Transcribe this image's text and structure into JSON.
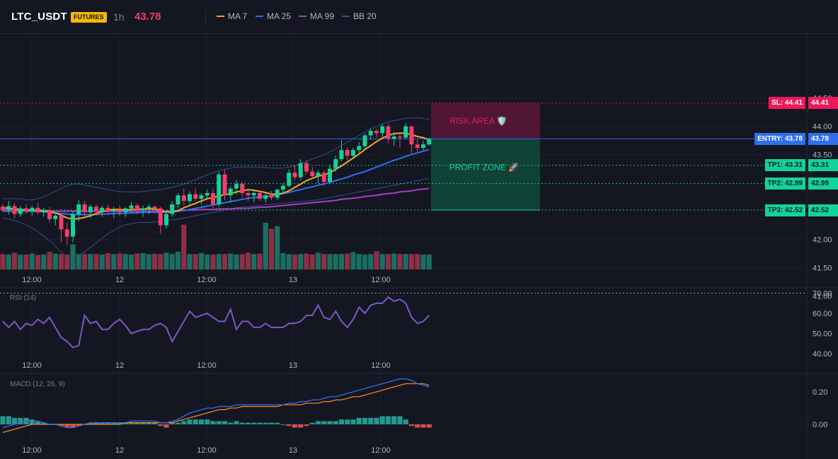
{
  "header": {
    "symbol": "LTC_USDT",
    "badge": "FUTURES",
    "timeframe": "1h",
    "price": "43.78",
    "legend": [
      {
        "label": "MA 7",
        "color": "#f5a623"
      },
      {
        "label": "MA 25",
        "color": "#2f6ff0"
      },
      {
        "label": "MA 99",
        "color": "#a53fc4"
      },
      {
        "label": "BB 20",
        "color": "#3a4a8c"
      }
    ]
  },
  "colors": {
    "up": "#12d39b",
    "down": "#f23e6b",
    "vol_up": "#1b6e62",
    "vol_down": "#8e2f45",
    "rsi": "#7e57c2",
    "macd": "#2f6ff0",
    "signal": "#f5821f",
    "hist_up": "#26a69a",
    "hist_down": "#ef5350"
  },
  "chart_data": {
    "type": "candlestick",
    "price_axis": {
      "ticks": [
        "44.50",
        "44.00",
        "43.50",
        "42.00",
        "41.50",
        "41.00"
      ]
    },
    "time_axis": {
      "labels": [
        "12:00",
        "12",
        "12:00",
        "13",
        "12:00"
      ]
    },
    "candles": [
      [
        42.58,
        42.63,
        42.48,
        42.52
      ],
      [
        42.52,
        42.68,
        42.44,
        42.59
      ],
      [
        42.59,
        42.64,
        42.38,
        42.45
      ],
      [
        42.45,
        42.6,
        42.4,
        42.55
      ],
      [
        42.55,
        42.62,
        42.45,
        42.5
      ],
      [
        42.5,
        42.6,
        42.42,
        42.56
      ],
      [
        42.56,
        42.64,
        42.44,
        42.48
      ],
      [
        42.48,
        42.56,
        42.4,
        42.52
      ],
      [
        42.52,
        42.58,
        42.3,
        42.36
      ],
      [
        42.36,
        42.48,
        42.25,
        42.42
      ],
      [
        42.42,
        42.45,
        41.95,
        42.18
      ],
      [
        42.18,
        42.3,
        41.9,
        42.05
      ],
      [
        42.05,
        42.5,
        41.95,
        42.45
      ],
      [
        42.45,
        42.7,
        42.32,
        42.62
      ],
      [
        42.62,
        42.68,
        42.4,
        42.48
      ],
      [
        42.48,
        42.62,
        42.38,
        42.58
      ],
      [
        42.58,
        42.62,
        42.42,
        42.5
      ],
      [
        42.5,
        42.6,
        42.4,
        42.56
      ],
      [
        42.56,
        42.62,
        42.44,
        42.5
      ],
      [
        42.5,
        42.58,
        42.38,
        42.52
      ],
      [
        42.52,
        42.6,
        42.42,
        42.48
      ],
      [
        42.48,
        42.57,
        42.4,
        42.55
      ],
      [
        42.55,
        42.66,
        42.48,
        42.6
      ],
      [
        42.6,
        42.63,
        42.45,
        42.52
      ],
      [
        42.52,
        42.6,
        42.4,
        42.55
      ],
      [
        42.55,
        42.62,
        42.45,
        42.58
      ],
      [
        42.58,
        42.6,
        42.48,
        42.55
      ],
      [
        42.55,
        42.58,
        42.1,
        42.25
      ],
      [
        42.25,
        42.5,
        42.2,
        42.45
      ],
      [
        42.45,
        42.68,
        42.4,
        42.62
      ],
      [
        42.62,
        42.82,
        42.55,
        42.78
      ],
      [
        42.78,
        42.9,
        42.6,
        42.68
      ],
      [
        42.68,
        42.85,
        42.62,
        42.8
      ],
      [
        42.8,
        42.9,
        42.68,
        42.72
      ],
      [
        42.72,
        42.82,
        42.62,
        42.78
      ],
      [
        42.78,
        42.88,
        42.7,
        42.82
      ],
      [
        42.82,
        42.9,
        42.55,
        42.62
      ],
      [
        42.62,
        43.2,
        42.58,
        43.15
      ],
      [
        43.15,
        43.24,
        42.7,
        42.78
      ],
      [
        42.78,
        42.95,
        42.65,
        42.9
      ],
      [
        42.9,
        43.05,
        42.8,
        42.98
      ],
      [
        42.98,
        43.02,
        42.75,
        42.82
      ],
      [
        42.82,
        42.9,
        42.68,
        42.78
      ],
      [
        42.78,
        42.88,
        42.66,
        42.82
      ],
      [
        42.82,
        42.86,
        42.68,
        42.72
      ],
      [
        42.72,
        42.82,
        42.65,
        42.78
      ],
      [
        42.78,
        42.86,
        42.7,
        42.74
      ],
      [
        42.74,
        42.9,
        42.7,
        42.88
      ],
      [
        42.88,
        43.0,
        42.8,
        42.95
      ],
      [
        42.95,
        43.24,
        42.92,
        43.18
      ],
      [
        43.18,
        43.3,
        43.05,
        43.1
      ],
      [
        43.1,
        43.42,
        43.05,
        43.35
      ],
      [
        43.35,
        43.4,
        43.15,
        43.2
      ],
      [
        43.2,
        43.28,
        43.08,
        43.12
      ],
      [
        43.12,
        43.22,
        43.0,
        43.18
      ],
      [
        43.18,
        43.22,
        42.95,
        43.02
      ],
      [
        43.02,
        43.32,
        42.98,
        43.25
      ],
      [
        43.25,
        43.48,
        43.2,
        43.42
      ],
      [
        43.42,
        43.76,
        43.38,
        43.58
      ],
      [
        43.58,
        43.62,
        43.4,
        43.48
      ],
      [
        43.48,
        43.62,
        43.42,
        43.58
      ],
      [
        43.58,
        43.72,
        43.5,
        43.65
      ],
      [
        43.65,
        43.88,
        43.6,
        43.84
      ],
      [
        43.84,
        43.96,
        43.76,
        43.92
      ],
      [
        43.92,
        43.95,
        43.8,
        43.88
      ],
      [
        43.88,
        44.05,
        43.8,
        44.0
      ],
      [
        44.0,
        44.05,
        43.7,
        43.78
      ],
      [
        43.78,
        43.9,
        43.65,
        43.82
      ],
      [
        43.82,
        43.88,
        43.62,
        43.8
      ],
      [
        43.8,
        44.05,
        43.78,
        44.0
      ],
      [
        44.0,
        44.0,
        43.52,
        43.68
      ],
      [
        43.68,
        43.76,
        43.55,
        43.62
      ],
      [
        43.62,
        43.74,
        43.58,
        43.68
      ],
      [
        43.68,
        43.8,
        43.65,
        43.78
      ]
    ],
    "volumes": [
      330,
      320,
      360,
      320,
      320,
      340,
      310,
      320,
      380,
      340,
      330,
      320,
      540,
      330,
      330,
      330,
      330,
      320,
      350,
      330,
      340,
      330,
      320,
      340,
      350,
      330,
      335,
      330,
      360,
      330,
      380,
      960,
      330,
      330,
      350,
      320,
      320,
      330,
      330,
      340,
      320,
      330,
      360,
      330,
      340,
      1000,
      870,
      930,
      350,
      330,
      320,
      330,
      340,
      320,
      360,
      330,
      330,
      330,
      330,
      340,
      370,
      330,
      320,
      330,
      390,
      330,
      330,
      340,
      330,
      330,
      330,
      330,
      320,
      320
    ],
    "ma7": [
      42.56,
      42.55,
      42.54,
      42.53,
      42.52,
      42.52,
      42.52,
      42.51,
      42.49,
      42.47,
      42.43,
      42.38,
      42.36,
      42.37,
      42.39,
      42.42,
      42.46,
      42.49,
      42.52,
      42.53,
      42.53,
      42.52,
      42.53,
      42.53,
      42.54,
      42.54,
      42.54,
      42.51,
      42.49,
      42.48,
      42.51,
      42.56,
      42.6,
      42.64,
      42.68,
      42.72,
      42.74,
      42.77,
      42.79,
      42.81,
      42.84,
      42.86,
      42.88,
      42.87,
      42.85,
      42.83,
      42.8,
      42.8,
      42.82,
      42.86,
      42.92,
      42.98,
      43.04,
      43.08,
      43.12,
      43.14,
      43.18,
      43.24,
      43.3,
      43.37,
      43.44,
      43.51,
      43.59,
      43.66,
      43.73,
      43.79,
      43.84,
      43.87,
      43.88,
      43.88,
      43.85,
      43.82,
      43.8,
      43.76
    ],
    "ma25": [
      42.52,
      42.52,
      42.51,
      42.51,
      42.5,
      42.5,
      42.49,
      42.49,
      42.48,
      42.47,
      42.46,
      42.45,
      42.44,
      42.44,
      42.44,
      42.44,
      42.44,
      42.45,
      42.45,
      42.46,
      42.46,
      42.46,
      42.47,
      42.47,
      42.48,
      42.48,
      42.48,
      42.48,
      42.48,
      42.49,
      42.5,
      42.51,
      42.53,
      42.55,
      42.57,
      42.59,
      42.61,
      42.63,
      42.65,
      42.67,
      42.69,
      42.71,
      42.73,
      42.74,
      42.75,
      42.76,
      42.77,
      42.79,
      42.81,
      42.83,
      42.86,
      42.88,
      42.91,
      42.93,
      42.96,
      42.98,
      43.01,
      43.04,
      43.07,
      43.1,
      43.14,
      43.17,
      43.2,
      43.24,
      43.28,
      43.32,
      43.36,
      43.4,
      43.43,
      43.47,
      43.5,
      43.53,
      43.56,
      43.59
    ],
    "ma99": [
      42.5,
      42.5,
      42.5,
      42.5,
      42.5,
      42.5,
      42.5,
      42.5,
      42.5,
      42.5,
      42.5,
      42.5,
      42.5,
      42.5,
      42.5,
      42.5,
      42.5,
      42.5,
      42.5,
      42.5,
      42.5,
      42.5,
      42.5,
      42.5,
      42.5,
      42.5,
      42.5,
      42.5,
      42.5,
      42.51,
      42.51,
      42.52,
      42.52,
      42.52,
      42.53,
      42.53,
      42.53,
      42.54,
      42.54,
      42.54,
      42.55,
      42.55,
      42.55,
      42.56,
      42.57,
      42.57,
      42.58,
      42.59,
      42.6,
      42.61,
      42.62,
      42.63,
      42.64,
      42.65,
      42.66,
      42.67,
      42.68,
      42.69,
      42.71,
      42.72,
      42.73,
      42.74,
      42.76,
      42.77,
      42.78,
      42.8,
      42.81,
      42.82,
      42.84,
      42.85,
      42.86,
      42.88,
      42.89,
      42.9
    ],
    "bb_upper": [
      42.72,
      42.72,
      42.72,
      42.72,
      42.7,
      42.7,
      42.72,
      42.76,
      42.8,
      42.85,
      42.9,
      42.95,
      42.98,
      42.98,
      42.96,
      42.94,
      42.92,
      42.9,
      42.88,
      42.86,
      42.85,
      42.84,
      42.84,
      42.84,
      42.85,
      42.86,
      42.87,
      42.88,
      42.9,
      42.92,
      42.95,
      42.98,
      43.02,
      43.06,
      43.1,
      43.14,
      43.18,
      43.22,
      43.24,
      43.26,
      43.28,
      43.28,
      43.28,
      43.28,
      43.28,
      43.27,
      43.26,
      43.26,
      43.26,
      43.28,
      43.3,
      43.34,
      43.38,
      43.42,
      43.46,
      43.5,
      43.55,
      43.6,
      43.66,
      43.72,
      43.78,
      43.84,
      43.9,
      43.96,
      44.0,
      44.04,
      44.08,
      44.1,
      44.12,
      44.14,
      44.15,
      44.15,
      44.14,
      44.12
    ],
    "bb_lower": [
      42.38,
      42.36,
      42.34,
      42.3,
      42.26,
      42.2,
      42.14,
      42.06,
      41.98,
      41.88,
      41.78,
      41.7,
      41.68,
      41.72,
      41.78,
      41.86,
      41.94,
      42.02,
      42.1,
      42.16,
      42.22,
      42.26,
      42.28,
      42.3,
      42.3,
      42.3,
      42.31,
      42.32,
      42.34,
      42.35,
      42.36,
      42.38,
      42.4,
      42.42,
      42.44,
      42.46,
      42.48,
      42.5,
      42.52,
      42.54,
      42.56,
      42.57,
      42.58,
      42.59,
      42.6,
      42.61,
      42.62,
      42.63,
      42.64,
      42.65,
      42.66,
      42.67,
      42.68,
      42.69,
      42.7,
      42.72,
      42.74,
      42.76,
      42.78,
      42.8,
      42.82,
      42.84,
      42.86,
      42.88,
      42.9,
      42.92,
      42.94,
      42.96,
      42.98,
      43.0,
      43.02,
      43.04,
      43.06,
      43.08
    ],
    "levels": [
      {
        "label": "SL: 44.41",
        "value": "44.41",
        "price": 44.41,
        "color": "#f0185c"
      },
      {
        "label": "ENTRY: 43.78",
        "value": "43.78",
        "price": 43.78,
        "color": "#2f6ff0"
      },
      {
        "label": "TP1: 43.31",
        "value": "43.31",
        "price": 43.31,
        "color": "#12d39b"
      },
      {
        "label": "TP2: 42.99",
        "value": "42.99",
        "price": 42.99,
        "color": "#12d39b"
      },
      {
        "label": "TP3: 42.52",
        "value": "42.52",
        "price": 42.52,
        "color": "#12d39b"
      }
    ],
    "zones": {
      "risk": {
        "label": "RISK AREA 🛡️",
        "top": 44.41,
        "bottom": 43.78
      },
      "profit": {
        "label": "PROFIT ZONE 🚀",
        "top": 43.78,
        "bottom": 42.52
      }
    },
    "rsi": {
      "title": "RSI (14)",
      "ticks": [
        "70.00",
        "60.00",
        "50.00",
        "40.00"
      ],
      "values": [
        56,
        53,
        56,
        52,
        55,
        54,
        57,
        55,
        58,
        53,
        48,
        46,
        43,
        44,
        59,
        55,
        56,
        52,
        52,
        55,
        57,
        54,
        50,
        51,
        52,
        52,
        54,
        55,
        53,
        46,
        51,
        56,
        61,
        58,
        59,
        60,
        58,
        56,
        56,
        62,
        52,
        56,
        56,
        53,
        53,
        55,
        53,
        53,
        53,
        55,
        55,
        56,
        59,
        59,
        64,
        58,
        57,
        61,
        56,
        53,
        57,
        63,
        60,
        64,
        65,
        65,
        68,
        66,
        67,
        65,
        58,
        55,
        56,
        59
      ]
    },
    "macd": {
      "title": "MACD (12, 26, 9)",
      "ticks": [
        "0.20",
        "0.00"
      ],
      "macd": [
        -0.02,
        -0.01,
        0.0,
        0.01,
        0.02,
        0.02,
        0.02,
        0.01,
        0.0,
        0.0,
        -0.01,
        -0.02,
        -0.02,
        -0.01,
        0.0,
        0.01,
        0.01,
        0.01,
        0.01,
        0.01,
        0.01,
        0.01,
        0.02,
        0.02,
        0.02,
        0.02,
        0.02,
        0.01,
        0.01,
        0.02,
        0.03,
        0.05,
        0.07,
        0.08,
        0.09,
        0.1,
        0.1,
        0.11,
        0.11,
        0.11,
        0.12,
        0.12,
        0.12,
        0.12,
        0.12,
        0.12,
        0.12,
        0.12,
        0.12,
        0.13,
        0.13,
        0.14,
        0.14,
        0.15,
        0.15,
        0.16,
        0.17,
        0.17,
        0.18,
        0.19,
        0.2,
        0.21,
        0.22,
        0.23,
        0.24,
        0.25,
        0.26,
        0.27,
        0.28,
        0.28,
        0.27,
        0.25,
        0.24,
        0.23
      ],
      "signal": [
        -0.05,
        -0.04,
        -0.03,
        -0.02,
        -0.01,
        0.0,
        0.0,
        0.0,
        0.0,
        0.0,
        0.0,
        0.0,
        0.0,
        0.0,
        0.0,
        0.0,
        0.0,
        0.0,
        0.0,
        0.0,
        0.0,
        0.01,
        0.01,
        0.01,
        0.01,
        0.01,
        0.01,
        0.01,
        0.01,
        0.01,
        0.02,
        0.03,
        0.04,
        0.05,
        0.06,
        0.07,
        0.08,
        0.09,
        0.09,
        0.1,
        0.1,
        0.11,
        0.11,
        0.11,
        0.11,
        0.11,
        0.11,
        0.11,
        0.12,
        0.12,
        0.12,
        0.12,
        0.13,
        0.13,
        0.13,
        0.14,
        0.14,
        0.15,
        0.15,
        0.16,
        0.17,
        0.17,
        0.18,
        0.19,
        0.2,
        0.21,
        0.22,
        0.23,
        0.24,
        0.25,
        0.25,
        0.25,
        0.25,
        0.24
      ],
      "hist": [
        0.05,
        0.05,
        0.04,
        0.04,
        0.04,
        0.03,
        0.02,
        0.01,
        0.0,
        0.0,
        -0.01,
        -0.02,
        -0.02,
        -0.01,
        0.0,
        0.01,
        0.01,
        0.01,
        0.01,
        0.01,
        0.01,
        0.01,
        0.01,
        0.01,
        0.01,
        0.01,
        0.01,
        -0.01,
        -0.02,
        0.01,
        0.01,
        0.02,
        0.03,
        0.03,
        0.03,
        0.03,
        0.02,
        0.02,
        0.02,
        0.01,
        0.02,
        0.01,
        0.01,
        0.01,
        0.01,
        0.01,
        0.01,
        0.01,
        0.0,
        -0.01,
        -0.02,
        -0.02,
        -0.01,
        0.01,
        0.02,
        0.02,
        0.02,
        0.02,
        0.03,
        0.03,
        0.03,
        0.04,
        0.04,
        0.04,
        0.04,
        0.05,
        0.05,
        0.05,
        0.05,
        0.03,
        -0.01,
        -0.02,
        -0.02,
        -0.02
      ]
    }
  }
}
